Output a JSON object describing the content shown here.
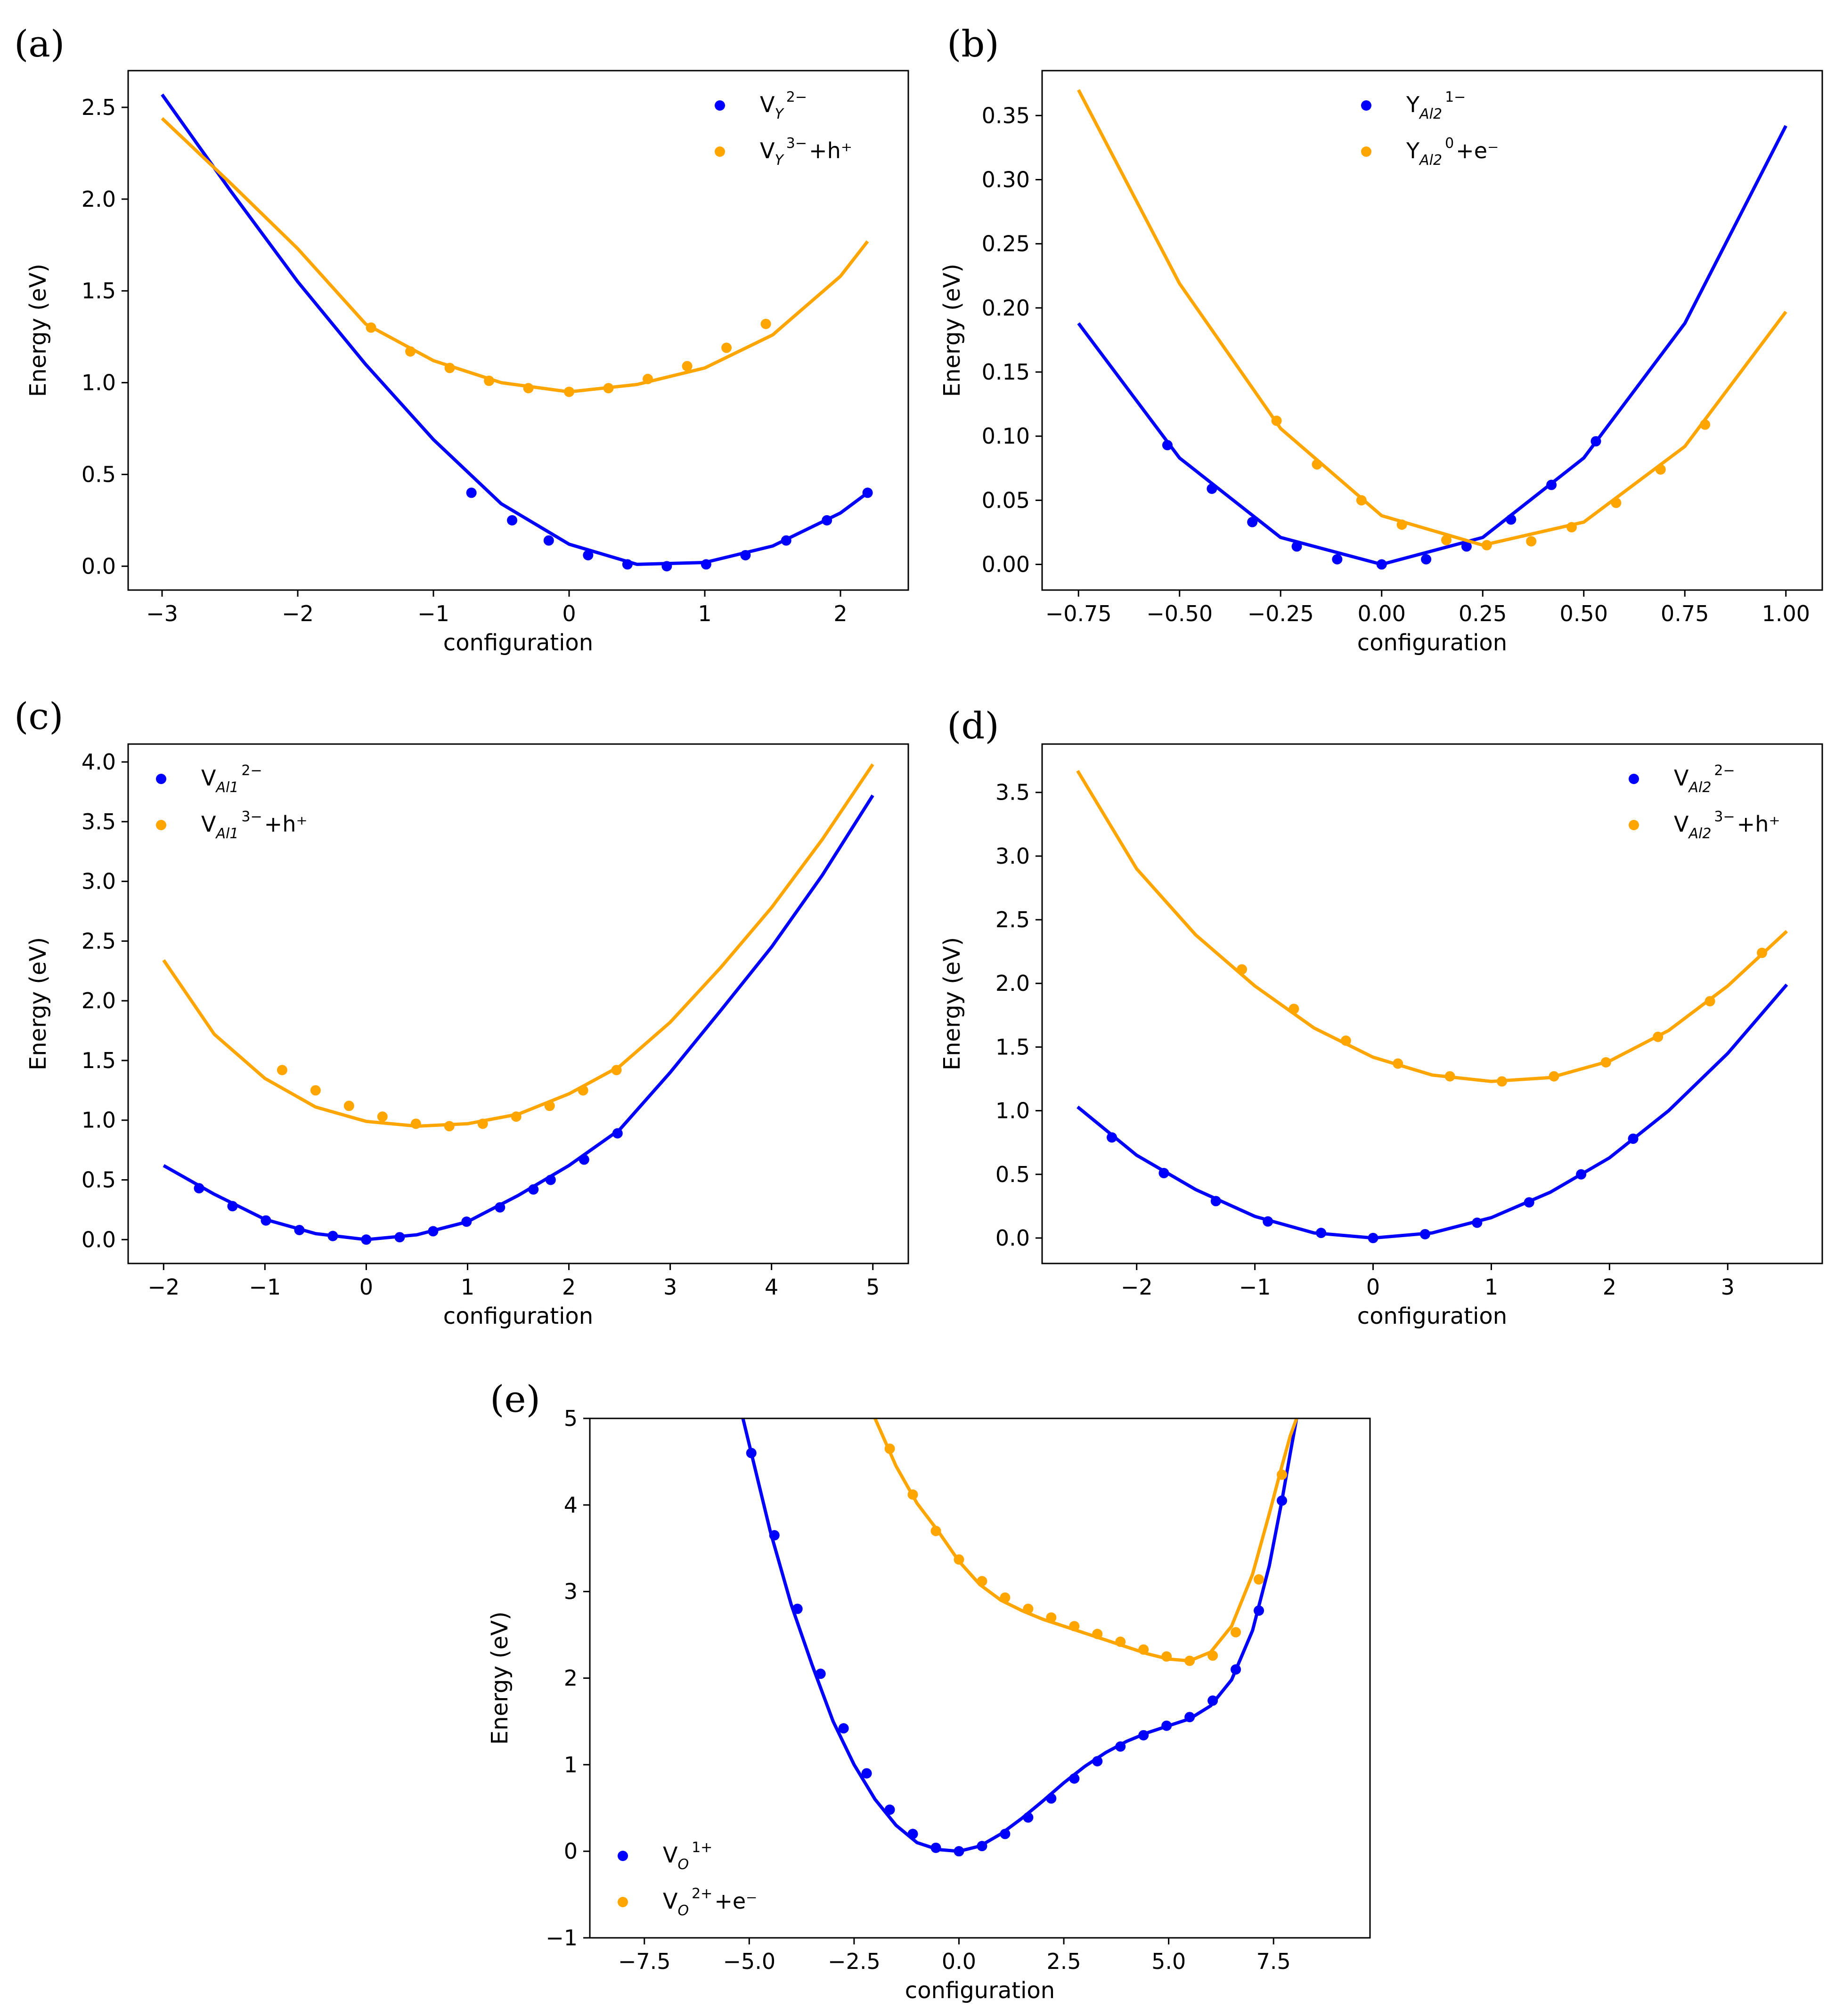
{
  "colors": {
    "blue": "#0000ff",
    "orange": "#ffa500",
    "axis": "#000000"
  },
  "chart_data": [
    {
      "id": "a",
      "type": "line",
      "panel_label": "(a)",
      "xlabel": "configuration",
      "ylabel": "Energy (eV)",
      "xlim": [
        -3.25,
        2.5
      ],
      "ylim": [
        -0.13,
        2.7
      ],
      "xticks": [
        -3,
        -2,
        -1,
        0,
        1,
        2
      ],
      "xtick_labels": [
        "−3",
        "−2",
        "−1",
        "0",
        "1",
        "2"
      ],
      "yticks": [
        0.0,
        0.5,
        1.0,
        1.5,
        2.0,
        2.5
      ],
      "ytick_labels": [
        "0.0",
        "0.5",
        "1.0",
        "1.5",
        "2.0",
        "2.5"
      ],
      "legend_position": "upper right",
      "series": [
        {
          "color": "blue",
          "legend": {
            "base": "V",
            "sub": "Y",
            "sup": "2−",
            "rest": ""
          },
          "curve": {
            "x": [
              -3.0,
              -2.5,
              -2.0,
              -1.5,
              -1.0,
              -0.5,
              0.0,
              0.5,
              1.0,
              1.5,
              2.0,
              2.2
            ],
            "y": [
              2.57,
              2.05,
              1.55,
              1.1,
              0.69,
              0.34,
              0.12,
              0.01,
              0.02,
              0.11,
              0.29,
              0.4
            ]
          },
          "points": {
            "x": [
              -0.72,
              -0.42,
              -0.15,
              0.14,
              0.43,
              0.72,
              1.01,
              1.3,
              1.6,
              1.9,
              2.2
            ],
            "y": [
              0.4,
              0.25,
              0.14,
              0.06,
              0.01,
              0.0,
              0.01,
              0.06,
              0.14,
              0.25,
              0.4
            ]
          }
        },
        {
          "color": "orange",
          "legend": {
            "base": "V",
            "sub": "Y",
            "sup": "3−",
            "rest": "+h⁺"
          },
          "curve": {
            "x": [
              -3.0,
              -2.5,
              -2.0,
              -1.5,
              -1.0,
              -0.5,
              0.0,
              0.5,
              1.0,
              1.5,
              2.0,
              2.2
            ],
            "y": [
              2.44,
              2.09,
              1.73,
              1.32,
              1.12,
              1.0,
              0.95,
              0.99,
              1.08,
              1.26,
              1.58,
              1.77
            ]
          },
          "points": {
            "x": [
              -1.46,
              -1.17,
              -0.88,
              -0.59,
              -0.3,
              0.0,
              0.29,
              0.58,
              0.87,
              1.16,
              1.45
            ],
            "y": [
              1.3,
              1.17,
              1.08,
              1.01,
              0.97,
              0.95,
              0.97,
              1.02,
              1.09,
              1.19,
              1.32
            ]
          }
        }
      ]
    },
    {
      "id": "b",
      "type": "line",
      "panel_label": "(b)",
      "xlabel": "configuration",
      "ylabel": "Energy (eV)",
      "xlim": [
        -0.84,
        1.09
      ],
      "ylim": [
        -0.02,
        0.385
      ],
      "xticks": [
        -0.75,
        -0.5,
        -0.25,
        0.0,
        0.25,
        0.5,
        0.75,
        1.0
      ],
      "xtick_labels": [
        "−0.75",
        "−0.50",
        "−0.25",
        "0.00",
        "0.25",
        "0.50",
        "0.75",
        "1.00"
      ],
      "yticks": [
        0.0,
        0.05,
        0.1,
        0.15,
        0.2,
        0.25,
        0.3,
        0.35
      ],
      "ytick_labels": [
        "0.00",
        "0.05",
        "0.10",
        "0.15",
        "0.20",
        "0.25",
        "0.30",
        "0.35"
      ],
      "legend_position": "upper center",
      "series": [
        {
          "color": "blue",
          "legend": {
            "base": "Y",
            "sub": "Al2",
            "sup": "1−",
            "rest": ""
          },
          "curve": {
            "x": [
              -0.75,
              -0.5,
              -0.25,
              0.0,
              0.25,
              0.5,
              0.75,
              1.0
            ],
            "y": [
              0.188,
              0.083,
              0.021,
              0.0,
              0.021,
              0.083,
              0.188,
              0.342
            ]
          },
          "points": {
            "x": [
              -0.53,
              -0.42,
              -0.32,
              -0.21,
              -0.11,
              0.0,
              0.11,
              0.21,
              0.32,
              0.42,
              0.53
            ],
            "y": [
              0.093,
              0.059,
              0.033,
              0.014,
              0.004,
              0.0,
              0.004,
              0.014,
              0.035,
              0.062,
              0.096
            ]
          }
        },
        {
          "color": "orange",
          "legend": {
            "base": "Y",
            "sub": "Al2",
            "sup": "0",
            "rest": "+e⁻"
          },
          "curve": {
            "x": [
              -0.75,
              -0.5,
              -0.25,
              0.0,
              0.25,
              0.5,
              0.75,
              1.0
            ],
            "y": [
              0.37,
              0.219,
              0.106,
              0.038,
              0.015,
              0.033,
              0.092,
              0.197
            ]
          },
          "points": {
            "x": [
              -0.26,
              -0.16,
              -0.05,
              0.05,
              0.16,
              0.26,
              0.37,
              0.47,
              0.58,
              0.69,
              0.8
            ],
            "y": [
              0.112,
              0.078,
              0.05,
              0.031,
              0.019,
              0.015,
              0.018,
              0.029,
              0.048,
              0.074,
              0.109
            ]
          }
        }
      ]
    },
    {
      "id": "c",
      "type": "line",
      "panel_label": "(c)",
      "xlabel": "configuration",
      "ylabel": "Energy (eV)",
      "xlim": [
        -2.35,
        5.35
      ],
      "ylim": [
        -0.2,
        4.15
      ],
      "xticks": [
        -2,
        -1,
        0,
        1,
        2,
        3,
        4,
        5
      ],
      "xtick_labels": [
        "−2",
        "−1",
        "0",
        "1",
        "2",
        "3",
        "4",
        "5"
      ],
      "yticks": [
        0.0,
        0.5,
        1.0,
        1.5,
        2.0,
        2.5,
        3.0,
        3.5,
        4.0
      ],
      "ytick_labels": [
        "0.0",
        "0.5",
        "1.0",
        "1.5",
        "2.0",
        "2.5",
        "3.0",
        "3.5",
        "4.0"
      ],
      "legend_position": "upper left",
      "series": [
        {
          "color": "blue",
          "legend": {
            "base": "V",
            "sub": "Al1",
            "sup": "2−",
            "rest": ""
          },
          "curve": {
            "x": [
              -2.0,
              -1.5,
              -1.0,
              -0.5,
              0.0,
              0.5,
              1.0,
              1.5,
              2.0,
              2.5,
              3.0,
              3.5,
              4.0,
              4.5,
              5.0
            ],
            "y": [
              0.62,
              0.38,
              0.17,
              0.05,
              0.0,
              0.04,
              0.15,
              0.37,
              0.62,
              0.92,
              1.4,
              1.92,
              2.45,
              3.05,
              3.72
            ]
          },
          "points": {
            "x": [
              -1.65,
              -1.32,
              -0.99,
              -0.66,
              -0.33,
              0.0,
              0.33,
              0.66,
              0.99,
              1.32,
              1.65,
              1.82,
              2.15,
              2.48
            ],
            "y": [
              0.43,
              0.28,
              0.16,
              0.08,
              0.03,
              0.0,
              0.02,
              0.07,
              0.15,
              0.27,
              0.42,
              0.5,
              0.67,
              0.89
            ]
          }
        },
        {
          "color": "orange",
          "legend": {
            "base": "V",
            "sub": "Al1",
            "sup": "3−",
            "rest": "+h⁺"
          },
          "curve": {
            "x": [
              -2.0,
              -1.5,
              -1.0,
              -0.5,
              0.0,
              0.5,
              1.0,
              1.5,
              2.0,
              2.5,
              3.0,
              3.5,
              4.0,
              4.5,
              5.0
            ],
            "y": [
              2.34,
              1.72,
              1.35,
              1.11,
              0.99,
              0.95,
              0.97,
              1.05,
              1.22,
              1.45,
              1.82,
              2.28,
              2.78,
              3.35,
              3.98
            ]
          },
          "points": {
            "x": [
              -0.83,
              -0.5,
              -0.17,
              0.16,
              0.49,
              0.82,
              1.15,
              1.48,
              1.81,
              2.14,
              2.47
            ],
            "y": [
              1.42,
              1.25,
              1.12,
              1.03,
              0.97,
              0.95,
              0.97,
              1.03,
              1.12,
              1.25,
              1.42
            ]
          }
        }
      ]
    },
    {
      "id": "d",
      "type": "line",
      "panel_label": "(d)",
      "xlabel": "configuration",
      "ylabel": "Energy (eV)",
      "xlim": [
        -2.8,
        3.8
      ],
      "ylim": [
        -0.2,
        3.88
      ],
      "xticks": [
        -2,
        -1,
        0,
        1,
        2,
        3
      ],
      "xtick_labels": [
        "−2",
        "−1",
        "0",
        "1",
        "2",
        "3"
      ],
      "yticks": [
        0.0,
        0.5,
        1.0,
        1.5,
        2.0,
        2.5,
        3.0,
        3.5
      ],
      "ytick_labels": [
        "0.0",
        "0.5",
        "1.0",
        "1.5",
        "2.0",
        "2.5",
        "3.0",
        "3.5"
      ],
      "legend_position": "upper right",
      "series": [
        {
          "color": "blue",
          "legend": {
            "base": "V",
            "sub": "Al2",
            "sup": "2−",
            "rest": ""
          },
          "curve": {
            "x": [
              -2.5,
              -2.0,
              -1.5,
              -1.0,
              -0.5,
              0.0,
              0.5,
              1.0,
              1.5,
              2.0,
              2.5,
              3.0,
              3.5
            ],
            "y": [
              1.03,
              0.65,
              0.38,
              0.17,
              0.04,
              0.0,
              0.04,
              0.16,
              0.36,
              0.63,
              1.0,
              1.45,
              1.99
            ]
          },
          "points": {
            "x": [
              -2.21,
              -1.77,
              -1.33,
              -0.89,
              -0.44,
              0.0,
              0.44,
              0.88,
              1.32,
              1.76,
              2.2
            ],
            "y": [
              0.79,
              0.51,
              0.29,
              0.13,
              0.04,
              0.0,
              0.03,
              0.12,
              0.28,
              0.5,
              0.78
            ]
          }
        },
        {
          "color": "orange",
          "legend": {
            "base": "V",
            "sub": "Al2",
            "sup": "3−",
            "rest": "+h⁺"
          },
          "curve": {
            "x": [
              -2.5,
              -2.0,
              -1.5,
              -1.0,
              -0.5,
              0.0,
              0.5,
              1.0,
              1.5,
              2.0,
              2.5,
              3.0,
              3.5
            ],
            "y": [
              3.67,
              2.9,
              2.38,
              1.98,
              1.65,
              1.42,
              1.28,
              1.23,
              1.26,
              1.39,
              1.63,
              1.98,
              2.41
            ]
          },
          "points": {
            "x": [
              -1.11,
              -0.67,
              -0.23,
              0.21,
              0.65,
              1.09,
              1.53,
              1.97,
              2.41,
              2.85,
              3.29
            ],
            "y": [
              2.11,
              1.8,
              1.55,
              1.37,
              1.27,
              1.23,
              1.27,
              1.38,
              1.58,
              1.86,
              2.24
            ]
          }
        }
      ]
    },
    {
      "id": "e",
      "type": "line",
      "panel_label": "(e)",
      "xlabel": "configuration",
      "ylabel": "Energy (eV)",
      "xlim": [
        -8.8,
        9.8
      ],
      "ylim": [
        -1.0,
        5.0
      ],
      "xticks": [
        -7.5,
        -5.0,
        -2.5,
        0.0,
        2.5,
        5.0,
        7.5
      ],
      "xtick_labels": [
        "−7.5",
        "−5.0",
        "−2.5",
        "0.0",
        "2.5",
        "5.0",
        "7.5"
      ],
      "yticks": [
        -1,
        0,
        1,
        2,
        3,
        4,
        5
      ],
      "ytick_labels": [
        "−1",
        "0",
        "1",
        "2",
        "3",
        "4",
        "5"
      ],
      "legend_position": "lower left",
      "series": [
        {
          "color": "blue",
          "legend": {
            "base": "V",
            "sub": "O",
            "sup": "1+",
            "rest": ""
          },
          "curve": {
            "x": [
              -5.15,
              -4.8,
              -4.5,
              -4.0,
              -3.5,
              -3.0,
              -2.5,
              -2.0,
              -1.5,
              -1.0,
              -0.5,
              0.0,
              0.5,
              1.0,
              1.5,
              2.0,
              2.5,
              3.0,
              3.5,
              4.0,
              4.5,
              5.0,
              5.5,
              6.0,
              6.5,
              7.0,
              7.4,
              7.7,
              7.9,
              8.05
            ],
            "y": [
              5.0,
              4.3,
              3.7,
              2.85,
              2.15,
              1.5,
              1.0,
              0.6,
              0.3,
              0.1,
              0.02,
              0.0,
              0.06,
              0.2,
              0.38,
              0.58,
              0.79,
              0.98,
              1.14,
              1.27,
              1.37,
              1.45,
              1.53,
              1.68,
              1.98,
              2.55,
              3.3,
              4.05,
              4.6,
              5.0
            ]
          },
          "points": {
            "x": [
              -4.95,
              -4.4,
              -3.85,
              -3.3,
              -2.75,
              -2.2,
              -1.65,
              -1.1,
              -0.55,
              0.0,
              0.55,
              1.1,
              1.65,
              2.2,
              2.75,
              3.3,
              3.85,
              4.4,
              4.95,
              5.5,
              6.05,
              6.6,
              7.15,
              7.7
            ],
            "y": [
              4.6,
              3.65,
              2.8,
              2.05,
              1.42,
              0.9,
              0.48,
              0.2,
              0.04,
              0.0,
              0.06,
              0.2,
              0.39,
              0.61,
              0.84,
              1.04,
              1.21,
              1.34,
              1.45,
              1.55,
              1.74,
              2.1,
              2.78,
              4.05
            ]
          }
        },
        {
          "color": "orange",
          "legend": {
            "base": "V",
            "sub": "O",
            "sup": "2+",
            "rest": "+e⁻"
          },
          "curve": {
            "x": [
              -2.0,
              -1.5,
              -1.0,
              -0.5,
              0.0,
              0.5,
              1.0,
              1.5,
              2.0,
              2.5,
              3.0,
              3.5,
              4.0,
              4.5,
              5.0,
              5.5,
              6.0,
              6.5,
              7.0,
              7.4,
              7.7,
              7.9,
              8.05
            ],
            "y": [
              5.0,
              4.45,
              4.02,
              3.7,
              3.35,
              3.08,
              2.9,
              2.78,
              2.68,
              2.6,
              2.52,
              2.44,
              2.36,
              2.28,
              2.22,
              2.2,
              2.3,
              2.6,
              3.2,
              3.9,
              4.45,
              4.8,
              5.0
            ]
          },
          "points": {
            "x": [
              -1.65,
              -1.1,
              -0.55,
              0.0,
              0.55,
              1.1,
              1.65,
              2.2,
              2.75,
              3.3,
              3.85,
              4.4,
              4.95,
              5.5,
              6.05,
              6.6,
              7.15,
              7.7
            ],
            "y": [
              4.65,
              4.12,
              3.7,
              3.37,
              3.12,
              2.93,
              2.8,
              2.7,
              2.6,
              2.51,
              2.42,
              2.33,
              2.25,
              2.2,
              2.26,
              2.53,
              3.14,
              4.35
            ]
          }
        }
      ]
    }
  ]
}
